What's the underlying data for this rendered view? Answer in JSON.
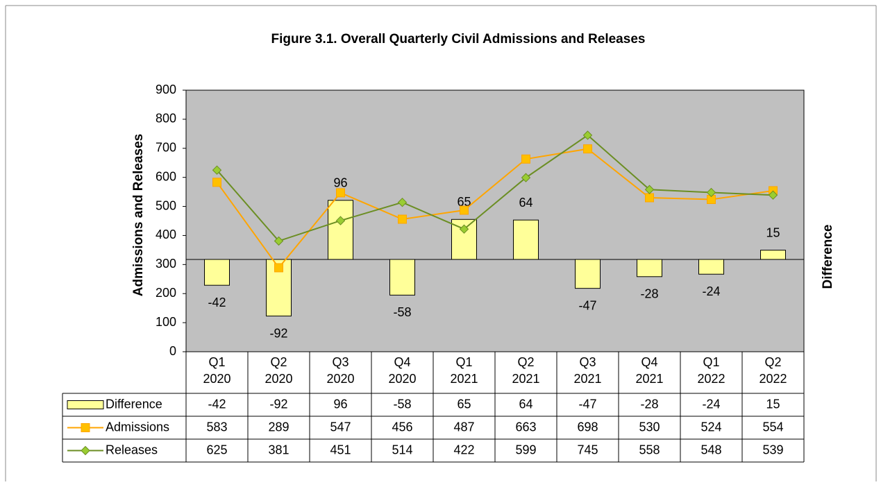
{
  "chart_data": {
    "type": "combo",
    "title": "Figure 3.1. Overall Quarterly Civil Admissions  and Releases",
    "ylabel": "Admissions and Releases",
    "y2label": "Difference",
    "categories": [
      "Q1 2020",
      "Q2 2020",
      "Q3 2020",
      "Q4 2020",
      "Q1 2021",
      "Q2 2021",
      "Q3 2021",
      "Q4 2021",
      "Q1 2022",
      "Q2 2022"
    ],
    "ylim": [
      0,
      900
    ],
    "yticks": [
      0,
      100,
      200,
      300,
      400,
      500,
      600,
      700,
      800,
      900
    ],
    "y2lim": [
      -150,
      275
    ],
    "series": [
      {
        "name": "Difference",
        "type": "bar",
        "axis": "y2",
        "color": "#ffff99",
        "values": [
          -42,
          -92,
          96,
          -58,
          65,
          64,
          -47,
          -28,
          -24,
          15
        ]
      },
      {
        "name": "Admissions",
        "type": "line",
        "color": "#ffa500",
        "marker": "square",
        "marker_color": "#ffc000",
        "values": [
          583,
          289,
          547,
          456,
          487,
          663,
          698,
          530,
          524,
          554
        ]
      },
      {
        "name": "Releases",
        "type": "line",
        "color": "#6b8e23",
        "marker": "diamond",
        "marker_color": "#9acd32",
        "values": [
          625,
          381,
          451,
          514,
          422,
          599,
          745,
          558,
          548,
          539
        ]
      }
    ],
    "plot_background": "#c0c0c0"
  }
}
